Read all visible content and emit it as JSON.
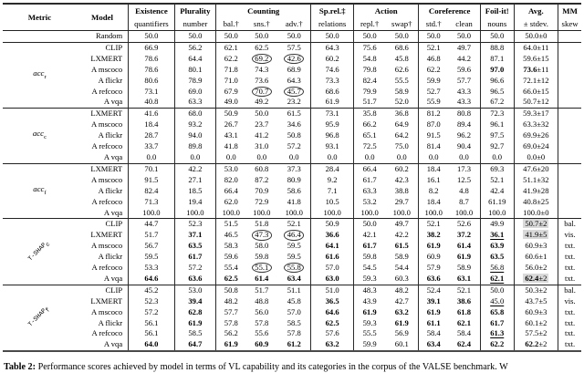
{
  "caption": {
    "label": "Table 2:",
    "text": " Performance scores achieved by model in terms of VL capability and its categories in the corpus of the VALSE benchmark. W"
  },
  "table": {
    "header": {
      "metric": "Metric",
      "model": "Model",
      "groups": [
        {
          "label": "Existence",
          "subs": [
            "quantifiers"
          ]
        },
        {
          "label": "Plurality",
          "subs": [
            "number"
          ]
        },
        {
          "label": "Counting",
          "subs": [
            "bal.†",
            "sns.†",
            "adv.†"
          ]
        },
        {
          "label": "Sp.rel.‡",
          "subs": [
            "relations"
          ]
        },
        {
          "label": "Action",
          "subs": [
            "repl.†",
            "swap†"
          ]
        },
        {
          "label": "Coreference",
          "subs": [
            "std.†",
            "clean"
          ]
        },
        {
          "label": "Foil-it!",
          "subs": [
            "nouns"
          ]
        },
        {
          "label": "Avg.",
          "subs": [
            "± stdev."
          ]
        },
        {
          "label": "MM",
          "subs": [
            "skew"
          ]
        }
      ]
    },
    "sections": [
      {
        "label": null,
        "rows": [
          {
            "model": "Random",
            "cells": [
              "50.0",
              "50.0",
              "50.0",
              "50.0",
              "50.0",
              "50.0",
              "50.0",
              "50.0",
              "50.0",
              "50.0",
              "50.0",
              {
                "v": "50.0",
                "pm": "±0"
              },
              ""
            ]
          }
        ]
      },
      {
        "label": {
          "base": "acc",
          "sub": "r",
          "rot": false
        },
        "rows": [
          {
            "model": "CLIP",
            "cells": [
              "66.9",
              "56.2",
              "62.1",
              "62.5",
              "57.5",
              "64.3",
              "75.6",
              "68.6",
              "52.1",
              "49.7",
              "88.8",
              {
                "v": "64.0",
                "pm": "±11"
              },
              ""
            ]
          },
          {
            "model": "LXMERT",
            "cells": [
              "78.6",
              "64.4",
              "62.2",
              {
                "v": "69.2",
                "c": 1
              },
              {
                "v": "42.6",
                "c": 1
              },
              "60.2",
              "54.8",
              "45.8",
              "46.8",
              "44.2",
              "87.1",
              {
                "v": "59.6",
                "pm": "±15"
              },
              ""
            ]
          },
          {
            "model": "A mscoco",
            "cells": [
              "78.6",
              "80.1",
              "71.8",
              "74.3",
              "68.9",
              "74.6",
              "79.8",
              "62.6",
              "62.2",
              "59.6",
              {
                "v": "97.0",
                "b": 1
              },
              {
                "v": "73.6",
                "pm": "±11",
                "b": 1
              },
              ""
            ]
          },
          {
            "model": "A flickr",
            "cells": [
              "80.6",
              "78.9",
              "71.0",
              "73.6",
              "64.3",
              "73.3",
              "82.4",
              "55.5",
              "59.9",
              "57.7",
              "96.6",
              {
                "v": "72.1",
                "pm": "±12"
              },
              ""
            ]
          },
          {
            "model": "A refcoco",
            "cells": [
              "73.1",
              "69.0",
              "67.9",
              {
                "v": "70.7",
                "c": 1
              },
              {
                "v": "45.7",
                "c": 1
              },
              "68.6",
              "79.9",
              "58.9",
              "52.7",
              "43.3",
              "96.5",
              {
                "v": "66.0",
                "pm": "±15"
              },
              ""
            ]
          },
          {
            "model": "A vqa",
            "cells": [
              "40.8",
              "63.3",
              "49.0",
              "49.2",
              "23.2",
              "61.9",
              "51.7",
              "52.0",
              "55.9",
              "43.3",
              "67.2",
              {
                "v": "50.7",
                "pm": "±12"
              },
              ""
            ]
          }
        ]
      },
      {
        "label": {
          "base": "acc",
          "sub": "c",
          "rot": false
        },
        "rows": [
          {
            "model": "LXMERT",
            "cells": [
              "41.6",
              "68.0",
              "50.9",
              "50.0",
              "61.5",
              "73.1",
              "35.8",
              "36.8",
              "81.2",
              "80.8",
              "72.3",
              {
                "v": "59.3",
                "pm": "±17"
              },
              ""
            ]
          },
          {
            "model": "A mscoco",
            "cells": [
              "18.4",
              "93.2",
              "26.7",
              "23.7",
              "34.6",
              "95.9",
              "66.2",
              "64.9",
              "87.0",
              "89.4",
              "96.1",
              {
                "v": "63.3",
                "pm": "±32"
              },
              ""
            ]
          },
          {
            "model": "A flickr",
            "cells": [
              "28.7",
              "94.0",
              "43.1",
              "41.2",
              "50.8",
              "96.8",
              "65.1",
              "64.2",
              "91.5",
              "96.2",
              "97.5",
              {
                "v": "69.9",
                "pm": "±26"
              },
              ""
            ]
          },
          {
            "model": "A refcoco",
            "cells": [
              "33.7",
              "89.8",
              "41.8",
              "31.0",
              "57.2",
              "93.1",
              "72.5",
              "75.0",
              "81.4",
              "90.4",
              "92.7",
              {
                "v": "69.0",
                "pm": "±24"
              },
              ""
            ]
          },
          {
            "model": "A vqa",
            "cells": [
              "0.0",
              "0.0",
              "0.0",
              "0.0",
              "0.0",
              "0.0",
              "0.0",
              "0.0",
              "0.0",
              "0.0",
              "0.0",
              {
                "v": "0.0",
                "pm": "±0"
              },
              ""
            ]
          }
        ]
      },
      {
        "label": {
          "base": "acc",
          "sub": "f",
          "rot": false
        },
        "rows": [
          {
            "model": "LXMERT",
            "cells": [
              "70.1",
              "42.2",
              "53.0",
              "60.8",
              "37.3",
              "28.4",
              "66.4",
              "60.2",
              "18.4",
              "17.3",
              "69.3",
              {
                "v": "47.6",
                "pm": "±20"
              },
              ""
            ]
          },
          {
            "model": "A mscoco",
            "cells": [
              "91.5",
              "27.1",
              "82.0",
              "87.2",
              "80.9",
              "9.2",
              "61.7",
              "42.3",
              "16.1",
              "12.5",
              "52.1",
              {
                "v": "51.1",
                "pm": "±32"
              },
              ""
            ]
          },
          {
            "model": "A flickr",
            "cells": [
              "82.4",
              "18.5",
              "66.4",
              "70.9",
              "58.6",
              "7.1",
              "63.3",
              "38.8",
              "8.2",
              "4.8",
              "42.4",
              {
                "v": "41.9",
                "pm": "±28"
              },
              ""
            ]
          },
          {
            "model": "A refcoco",
            "cells": [
              "71.3",
              "19.4",
              "62.0",
              "72.9",
              "41.8",
              "10.5",
              "53.2",
              "29.7",
              "18.4",
              "8.7",
              "61.19",
              {
                "v": "40.8",
                "pm": "±25"
              },
              ""
            ]
          },
          {
            "model": "A vqa",
            "cells": [
              "100.0",
              "100.0",
              "100.0",
              "100.0",
              "100.0",
              "100.0",
              "100.0",
              "100.0",
              "100.0",
              "100.0",
              "100.0",
              {
                "v": "100.0",
                "pm": "±0"
              },
              ""
            ]
          }
        ]
      },
      {
        "label": {
          "base": "T-SHAP",
          "sub": "c",
          "rot": true
        },
        "thick": true,
        "rows": [
          {
            "model": "CLIP",
            "cells": [
              "44.7",
              "52.3",
              "51.5",
              "51.8",
              "52.1",
              "50.9",
              "50.0",
              "49.7",
              "52.1",
              "52.6",
              "49.9",
              {
                "v": "50.7",
                "pm": "±2",
                "hl": 1
              },
              "bal."
            ]
          },
          {
            "model": "LXMERT",
            "cells": [
              "51.7",
              {
                "v": "37.1",
                "b": 1
              },
              "46.5",
              {
                "v": "47.3",
                "c": 1
              },
              {
                "v": "46.4",
                "c": 1
              },
              {
                "v": "36.6",
                "b": 1
              },
              "42.1",
              "42.2",
              {
                "v": "38.2",
                "b": 1
              },
              {
                "v": "37.2",
                "b": 1
              },
              {
                "v": "36.1",
                "b": 1,
                "u": 1
              },
              {
                "v": "41.9",
                "pm": "±5",
                "hl": 1
              },
              "vis."
            ]
          },
          {
            "model": "A mscoco",
            "cells": [
              "56.7",
              {
                "v": "63.5",
                "b": 1
              },
              "58.3",
              "58.0",
              "59.5",
              {
                "v": "64.1",
                "b": 1
              },
              {
                "v": "61.7",
                "b": 1
              },
              {
                "v": "61.5",
                "b": 1
              },
              {
                "v": "61.9",
                "b": 1
              },
              {
                "v": "61.4",
                "b": 1
              },
              {
                "v": "63.9",
                "b": 1
              },
              {
                "v": "60.9",
                "pm": "±3"
              },
              "txt."
            ]
          },
          {
            "model": "A flickr",
            "cells": [
              "59.5",
              {
                "v": "61.7",
                "b": 1
              },
              "59.6",
              "59.8",
              "59.5",
              {
                "v": "61.6",
                "b": 1
              },
              "59.8",
              "58.9",
              "60.9",
              {
                "v": "61.9",
                "b": 1
              },
              {
                "v": "63.5",
                "b": 1
              },
              {
                "v": "60.6",
                "pm": "±1"
              },
              "txt."
            ]
          },
          {
            "model": "A refcoco",
            "cells": [
              "53.3",
              "57.2",
              "55.4",
              {
                "v": "55.1",
                "c": 1
              },
              {
                "v": "55.8",
                "c": 1
              },
              "57.0",
              "54.5",
              "54.4",
              "57.9",
              "58.9",
              {
                "v": "56.8",
                "u": 1
              },
              {
                "v": "56.0",
                "pm": "±2"
              },
              "txt."
            ]
          },
          {
            "model": "A vqa",
            "cells": [
              {
                "v": "64.6",
                "b": 1
              },
              {
                "v": "63.6",
                "b": 1
              },
              {
                "v": "62.5",
                "b": 1
              },
              {
                "v": "61.4",
                "b": 1
              },
              {
                "v": "63.4",
                "b": 1
              },
              {
                "v": "63.0",
                "b": 1
              },
              "59.3",
              "60.3",
              {
                "v": "63.6",
                "b": 1
              },
              {
                "v": "63.1",
                "b": 1
              },
              {
                "v": "62.1",
                "b": 1,
                "u": 1
              },
              {
                "v": "62.4",
                "pm": "±2",
                "b": 1,
                "hl": 1
              },
              "txt."
            ]
          }
        ]
      },
      {
        "label": {
          "base": "T-SHAP",
          "sub": "f",
          "rot": true
        },
        "rows": [
          {
            "model": "CLIP",
            "cells": [
              "45.2",
              "53.0",
              "50.8",
              "51.7",
              "51.1",
              "51.0",
              "48.3",
              "48.2",
              "52.4",
              "52.1",
              "50.0",
              {
                "v": "50.3",
                "pm": "±2"
              },
              "bal."
            ]
          },
          {
            "model": "LXMERT",
            "cells": [
              "52.3",
              {
                "v": "39.4",
                "b": 1
              },
              "48.2",
              "48.8",
              "45.8",
              {
                "v": "36.5",
                "b": 1
              },
              "43.9",
              "42.7",
              {
                "v": "39.1",
                "b": 1
              },
              {
                "v": "38.6",
                "b": 1
              },
              {
                "v": "45.0",
                "u": 1
              },
              {
                "v": "43.7",
                "pm": "±5"
              },
              "vis."
            ]
          },
          {
            "model": "A mscoco",
            "cells": [
              "57.2",
              {
                "v": "62.8",
                "b": 1
              },
              "57.7",
              "56.0",
              "57.0",
              {
                "v": "64.6",
                "b": 1
              },
              {
                "v": "61.9",
                "b": 1
              },
              {
                "v": "63.2",
                "b": 1
              },
              {
                "v": "61.9",
                "b": 1
              },
              {
                "v": "61.8",
                "b": 1
              },
              {
                "v": "65.8",
                "b": 1
              },
              {
                "v": "60.9",
                "pm": "±3"
              },
              "txt."
            ]
          },
          {
            "model": "A flickr",
            "cells": [
              "56.1",
              {
                "v": "61.9",
                "b": 1
              },
              "57.8",
              "57.8",
              "58.5",
              {
                "v": "62.5",
                "b": 1
              },
              "59.3",
              {
                "v": "61.9",
                "b": 1
              },
              {
                "v": "61.1",
                "b": 1
              },
              {
                "v": "62.1",
                "b": 1
              },
              {
                "v": "61.7",
                "b": 1
              },
              {
                "v": "60.1",
                "pm": "±2"
              },
              "txt."
            ]
          },
          {
            "model": "A refcoco",
            "cells": [
              "56.1",
              "58.5",
              "56.2",
              "55.6",
              "57.8",
              "57.6",
              "55.5",
              "56.9",
              "58.4",
              "58.4",
              {
                "v": "61.3",
                "b": 1,
                "u": 1
              },
              {
                "v": "57.5",
                "pm": "±2"
              },
              "txt."
            ]
          },
          {
            "model": "A vqa",
            "cells": [
              {
                "v": "64.0",
                "b": 1
              },
              {
                "v": "64.7",
                "b": 1
              },
              {
                "v": "61.9",
                "b": 1
              },
              {
                "v": "60.9",
                "b": 1
              },
              {
                "v": "61.2",
                "b": 1
              },
              {
                "v": "63.2",
                "b": 1
              },
              "59.9",
              "60.1",
              {
                "v": "63.4",
                "b": 1
              },
              {
                "v": "62.4",
                "b": 1
              },
              {
                "v": "62.2",
                "b": 1
              },
              {
                "v": "62.2",
                "pm": "±2",
                "b": 1
              },
              "txt."
            ]
          }
        ]
      }
    ]
  }
}
